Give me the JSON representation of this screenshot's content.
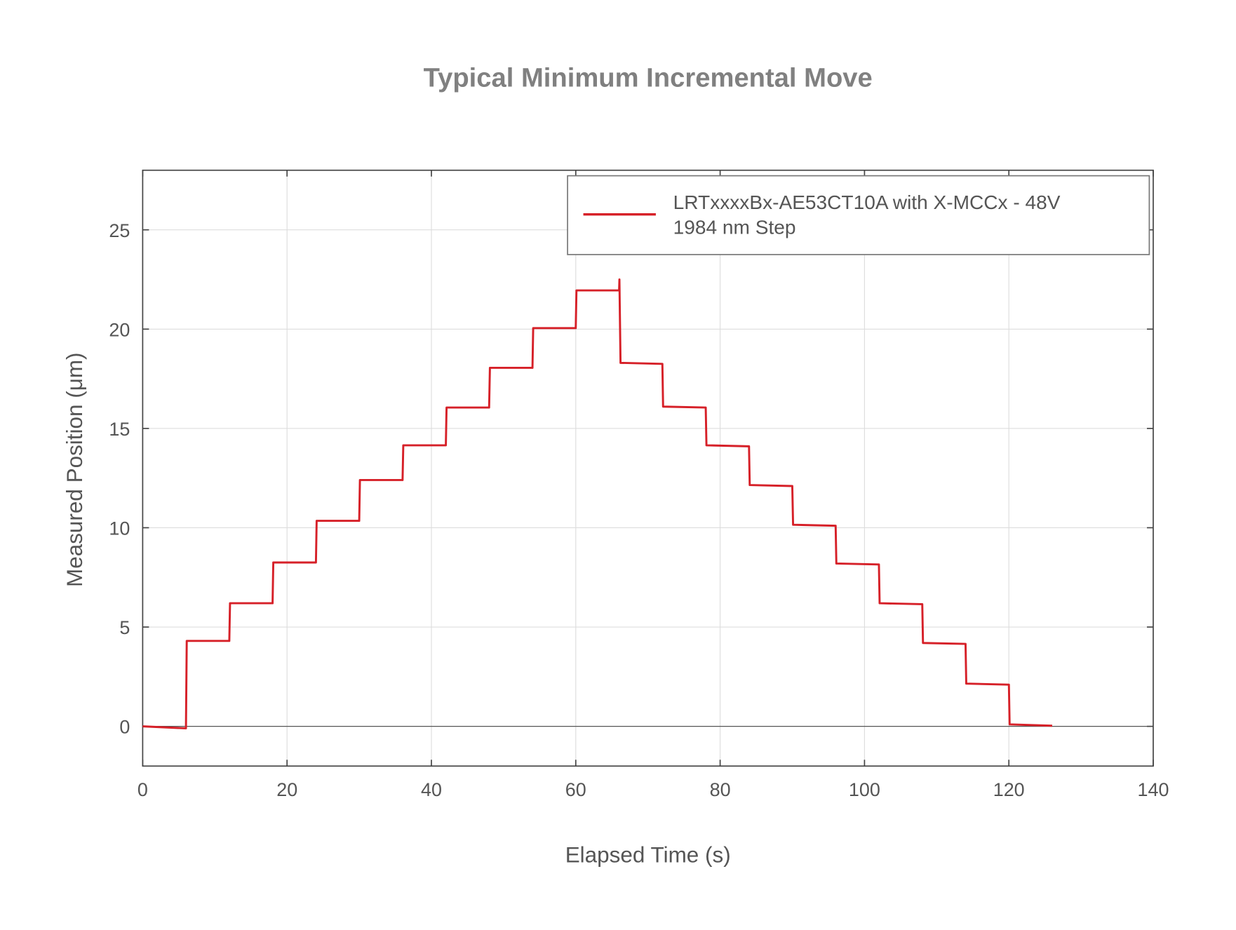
{
  "chart_data": {
    "type": "line",
    "title": "Typical Minimum Incremental Move",
    "xlabel": "Elapsed Time (s)",
    "ylabel": "Measured Position (μm)",
    "xlim": [
      0,
      140
    ],
    "ylim": [
      -2,
      28
    ],
    "xticks": [
      0,
      20,
      40,
      60,
      80,
      100,
      120,
      140
    ],
    "yticks": [
      0,
      5,
      10,
      15,
      20,
      25
    ],
    "grid": true,
    "legend_placement": "top-right",
    "series": [
      {
        "name": "LRTxxxxBx-AE53CT10A with X-MCCx - 48V",
        "name_line2": "1984 nm Step",
        "color": "#d62028",
        "x": [
          0,
          6,
          6.1,
          12,
          12.1,
          18,
          18.1,
          24,
          24.1,
          30,
          30.1,
          36,
          36.1,
          42,
          42.1,
          48,
          48.1,
          54,
          54.1,
          60,
          60.1,
          66,
          66.05,
          66.2,
          72,
          72.1,
          78,
          78.1,
          84,
          84.1,
          90,
          90.1,
          96,
          96.1,
          102,
          102.1,
          108,
          108.1,
          114,
          114.1,
          120,
          120.1,
          126
        ],
        "y": [
          0,
          -0.1,
          4.3,
          4.3,
          6.2,
          6.2,
          8.25,
          8.25,
          10.35,
          10.35,
          12.4,
          12.4,
          14.15,
          14.15,
          16.05,
          16.05,
          18.05,
          18.05,
          20.05,
          20.05,
          21.95,
          21.95,
          22.5,
          18.3,
          18.25,
          16.1,
          16.05,
          14.15,
          14.1,
          12.15,
          12.1,
          10.15,
          10.1,
          8.2,
          8.15,
          6.2,
          6.15,
          4.2,
          4.15,
          2.15,
          2.1,
          0.1,
          0.03
        ]
      }
    ]
  }
}
